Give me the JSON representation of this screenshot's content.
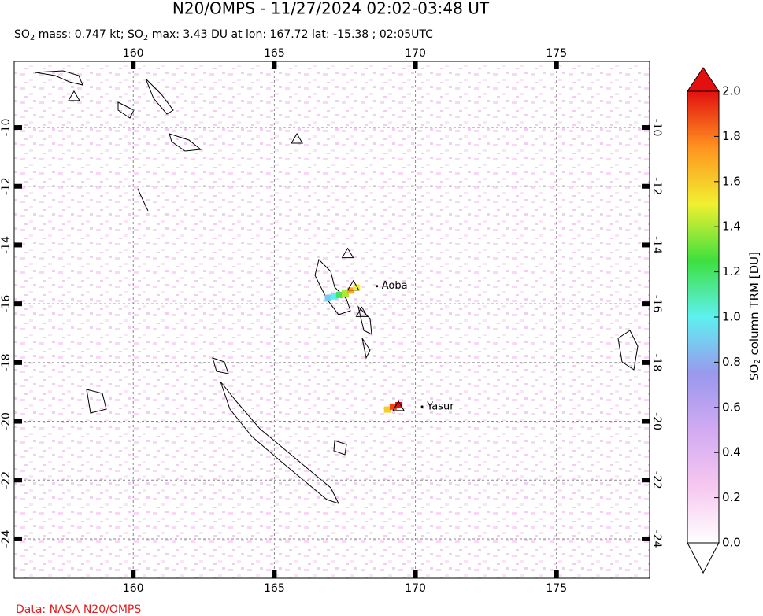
{
  "chart_data": {
    "type": "map",
    "title": "N20/OMPS - 11/27/2024 02:02-03:48 UT",
    "subtitle": [
      "SO",
      "2",
      " mass: 0.747 kt; SO",
      "2",
      " max: 3.43 DU at lon: 167.72 lat: -15.38 ; 02:05UTC"
    ],
    "xlim": [
      155.78,
      178.3
    ],
    "ylim": [
      -25.34,
      -7.75
    ],
    "xticks": [
      160,
      165,
      170,
      175
    ],
    "yticks": [
      -10,
      -12,
      -14,
      -16,
      -18,
      -20,
      -22,
      -24
    ],
    "grid": true,
    "volcanoes": [
      {
        "lon": 157.9,
        "lat": -8.95
      },
      {
        "lon": 165.8,
        "lat": -10.4
      },
      {
        "lon": 167.6,
        "lat": -14.3
      },
      {
        "name": "Aoba",
        "lon": 167.8,
        "lat": -15.4
      },
      {
        "lon": 168.1,
        "lat": -16.3
      },
      {
        "name": "Yasur",
        "lon": 169.4,
        "lat": -19.5
      }
    ],
    "plume": {
      "lon": [
        166.9,
        167.1,
        167.3,
        167.5,
        167.7,
        167.9,
        169.0,
        169.2,
        169.4
      ],
      "lat": [
        -15.8,
        -15.75,
        -15.7,
        -15.65,
        -15.55,
        -15.45,
        -19.6,
        -19.5,
        -19.45
      ],
      "values": [
        0.9,
        1.0,
        1.2,
        1.4,
        1.7,
        1.5,
        1.6,
        1.9,
        2.0
      ]
    },
    "colorbar": {
      "label": [
        "SO",
        "2",
        " column TRM [DU]"
      ],
      "lim": [
        0,
        2
      ],
      "colors": [
        "#ffffff",
        "#f6c8f0",
        "#d2aaf2",
        "#9a98ee",
        "#5ef0f0",
        "#3ee03e",
        "#f0f030",
        "#ff9420",
        "#e41010"
      ],
      "ticks": [
        {
          "value": 0,
          "label": "0.0"
        },
        {
          "value": 0.2,
          "label": "0.2"
        },
        {
          "value": 0.4,
          "label": "0.4"
        },
        {
          "value": 0.6,
          "label": "0.6"
        },
        {
          "value": 0.8,
          "label": "0.8"
        },
        {
          "value": 1,
          "label": "1.0"
        },
        {
          "value": 1.2,
          "label": "1.2"
        },
        {
          "value": 1.4,
          "label": "1.4"
        },
        {
          "value": 1.6,
          "label": "1.6"
        },
        {
          "value": 1.8,
          "label": "1.8"
        },
        {
          "value": 2,
          "label": "2.0"
        }
      ]
    },
    "footer": "Data: NASA N20/OMPS"
  }
}
